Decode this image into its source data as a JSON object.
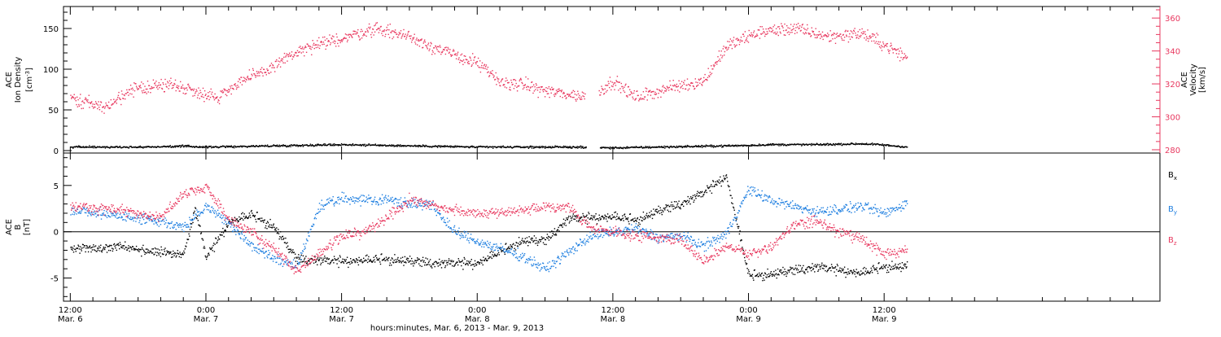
{
  "colors": {
    "black": "#000000",
    "pink": "#e8385f",
    "blue": "#1f7fe0",
    "axis": "#000000"
  },
  "x_axis": {
    "title": "hours:minutes, Mar.  6, 2013 - Mar.  9, 2013",
    "range_hours": [
      -0.6,
      96.4
    ],
    "ticks": [
      {
        "h": 0,
        "time": "12:00",
        "date": "Mar. 6"
      },
      {
        "h": 12,
        "time": "0:00",
        "date": "Mar. 7"
      },
      {
        "h": 24,
        "time": "12:00",
        "date": "Mar. 7"
      },
      {
        "h": 36,
        "time": "0:00",
        "date": "Mar. 8"
      },
      {
        "h": 48,
        "time": "12:00",
        "date": "Mar. 8"
      },
      {
        "h": 60,
        "time": "0:00",
        "date": "Mar. 9"
      },
      {
        "h": 72,
        "time": "12:00",
        "date": "Mar. 9"
      }
    ]
  },
  "chart_data": [
    {
      "type": "scatter",
      "panel": "top",
      "ylabel_lines": [
        "ACE",
        "Ion Density"
      ],
      "ylabel_unit": "[cm",
      "ylabel_unit_sup": "-3",
      "ylabel_unit_end": "]",
      "ylim": [
        -3,
        177
      ],
      "yticks": [
        0,
        50,
        100,
        150
      ],
      "y2label_lines": [
        "ACE",
        "Velocity"
      ],
      "y2label_unit": "[km/s]",
      "y2lim": [
        278,
        367
      ],
      "y2ticks": [
        280,
        300,
        320,
        340,
        360
      ],
      "grid": false,
      "series": [
        {
          "axis": "left",
          "color": "black",
          "gaps": [
            [
              45.6,
              46.8
            ]
          ],
          "x": [
            0,
            6,
            10,
            12,
            16,
            20,
            24,
            28,
            32,
            36,
            40,
            44,
            48,
            52,
            56,
            60,
            62,
            66,
            70,
            71.5,
            74
          ],
          "y": [
            5,
            5,
            6,
            5,
            6,
            7,
            8,
            7,
            6,
            5,
            5,
            5,
            4,
            5,
            6,
            7,
            8,
            8,
            9,
            8,
            5
          ]
        },
        {
          "axis": "right",
          "color": "pink",
          "gaps": [
            [
              45.5,
              46.7
            ]
          ],
          "x": [
            0,
            3,
            6,
            9,
            11,
            13,
            15,
            17,
            19,
            21,
            24,
            27,
            30,
            33,
            36,
            38,
            40,
            42,
            44,
            46,
            48,
            50,
            53,
            56,
            58,
            61,
            64,
            67,
            70,
            72,
            74
          ],
          "y": [
            312,
            306,
            318,
            320,
            316,
            312,
            322,
            327,
            336,
            342,
            348,
            354,
            349,
            340,
            333,
            321,
            320,
            316,
            314,
            312,
            322,
            312,
            318,
            322,
            343,
            352,
            354,
            349,
            351,
            344,
            336
          ]
        }
      ]
    },
    {
      "type": "scatter",
      "panel": "bottom",
      "ylabel_lines": [
        "ACE",
        "B"
      ],
      "ylabel_unit": "[nT]",
      "ylim": [
        -7.5,
        8.5
      ],
      "yticks": [
        -5,
        0,
        5
      ],
      "zero_line": true,
      "grid": false,
      "legend": "right",
      "series": [
        {
          "name": "B",
          "sub": "x",
          "color": "black",
          "x": [
            0,
            4,
            8,
            10,
            11,
            12,
            14,
            16,
            18,
            20,
            24,
            28,
            32,
            36,
            40,
            42,
            44,
            48,
            50,
            52,
            54,
            56,
            58,
            60,
            62,
            66,
            70,
            72,
            74
          ],
          "y": [
            -1.8,
            -1.6,
            -2.2,
            -2.6,
            2.5,
            -2.8,
            1.0,
            1.8,
            0.5,
            -3.0,
            -3.2,
            -3.0,
            -3.4,
            -3.4,
            -1.0,
            -1.0,
            1.4,
            1.6,
            1.2,
            2.2,
            3.0,
            4.2,
            6.0,
            -4.8,
            -4.6,
            -3.8,
            -4.5,
            -3.8,
            -3.8
          ]
        },
        {
          "name": "B",
          "sub": "y",
          "color": "blue",
          "x": [
            0,
            4,
            8,
            10,
            12,
            14,
            16,
            18,
            20,
            22,
            24,
            28,
            32,
            34,
            36,
            40,
            42,
            44,
            46,
            48,
            50,
            52,
            54,
            56,
            58,
            60,
            62,
            64,
            66,
            70,
            72,
            74
          ],
          "y": [
            2.4,
            1.8,
            1.2,
            0.5,
            2.8,
            1.0,
            -1.5,
            -2.8,
            -3.8,
            2.8,
            3.6,
            3.5,
            2.8,
            0.0,
            -1.0,
            -2.6,
            -4.0,
            -2.2,
            -0.4,
            0.0,
            0.4,
            -0.6,
            -0.4,
            -1.5,
            -0.2,
            4.6,
            3.4,
            2.8,
            2.2,
            2.8,
            2.0,
            3.2
          ]
        },
        {
          "name": "B",
          "sub": "z",
          "color": "pink",
          "x": [
            0,
            4,
            8,
            10,
            12,
            14,
            16,
            18,
            20,
            24,
            26,
            28,
            30,
            32,
            34,
            36,
            40,
            44,
            46,
            48,
            50,
            52,
            54,
            56,
            58,
            60,
            62,
            64,
            66,
            68,
            70,
            72,
            74
          ],
          "y": [
            2.8,
            2.4,
            1.6,
            4.2,
            4.8,
            1.4,
            0.0,
            -1.8,
            -4.2,
            -0.4,
            0.0,
            1.6,
            3.6,
            3.0,
            2.4,
            2.0,
            2.4,
            2.8,
            0.4,
            0.0,
            -0.4,
            -0.6,
            -0.8,
            -3.2,
            -1.4,
            -2.4,
            -1.6,
            0.8,
            1.2,
            0.0,
            -0.8,
            -2.4,
            -2.0
          ]
        }
      ]
    }
  ]
}
